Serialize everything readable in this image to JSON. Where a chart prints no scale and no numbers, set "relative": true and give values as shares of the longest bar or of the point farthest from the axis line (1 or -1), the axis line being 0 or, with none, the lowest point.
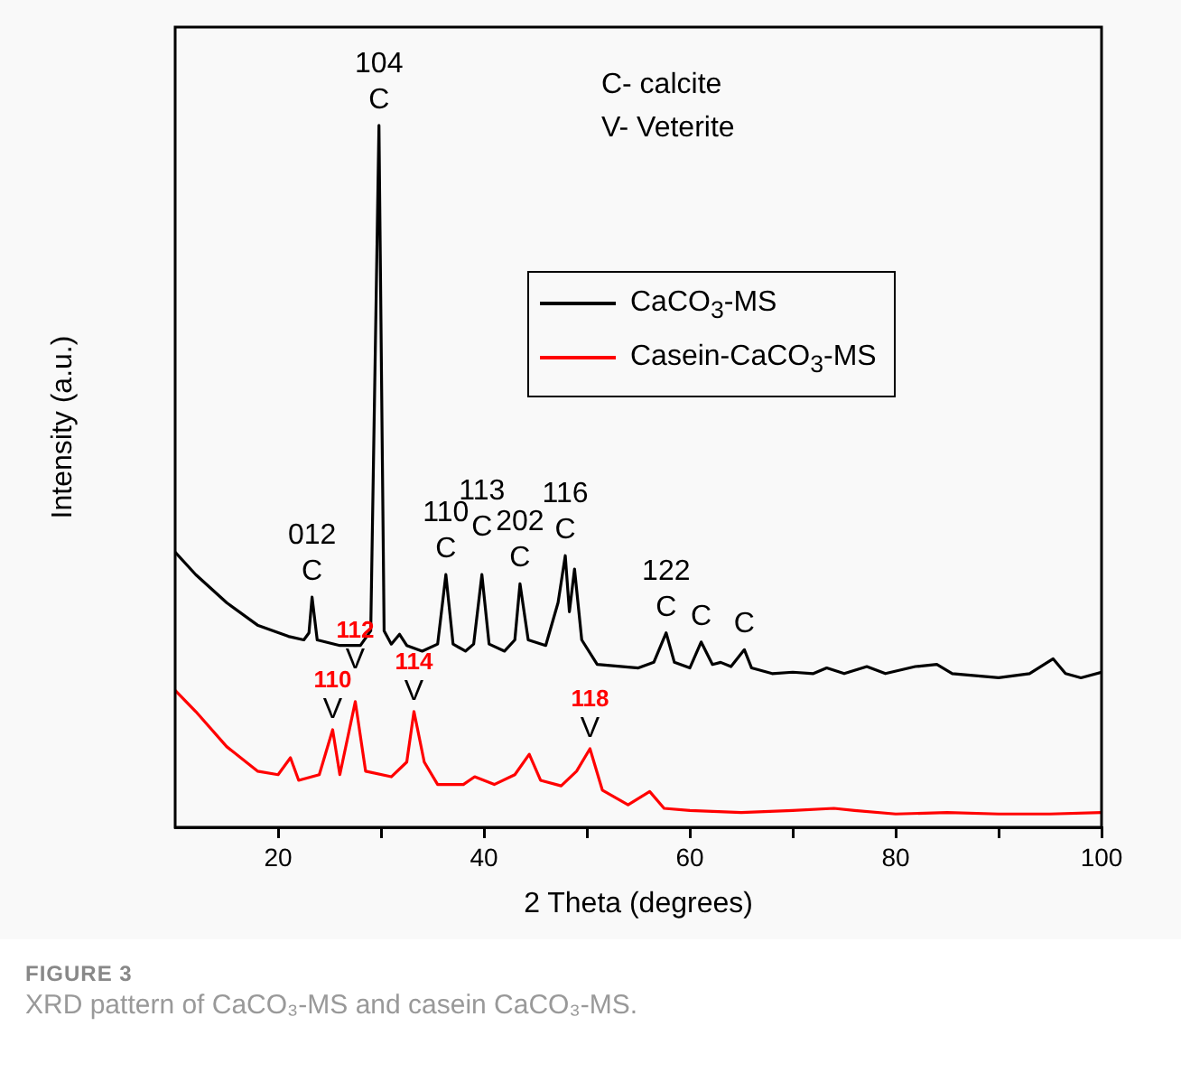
{
  "chart_data": {
    "type": "line",
    "title": "FIGURE 3",
    "subtitle": "XRD pattern of CaCO₃-MS and casein CaCO₃-MS.",
    "xlabel": "2 Theta (degrees)",
    "ylabel": "Intensity (a.u.)",
    "relative": true,
    "legend": "top right",
    "marker": "none",
    "line_style": "solid",
    "xlim": [
      10,
      100
    ],
    "xticks": [
      20,
      {
        "value": 30,
        "label": null
      },
      40,
      {
        "value": 50,
        "label": null
      },
      60,
      {
        "value": 70,
        "label": null
      },
      80,
      {
        "value": 90,
        "label": null
      },
      100
    ],
    "series": [
      {
        "name": "CaCO$_{3}$-MS",
        "color": "#000000",
        "x": [
          10,
          12,
          15,
          18,
          21,
          22.5,
          23,
          23.3,
          23.8,
          26,
          28,
          29,
          29.8,
          30.3,
          31,
          31.8,
          32.5,
          34,
          35.5,
          36.3,
          37,
          38.2,
          39,
          39.8,
          40.5,
          42,
          43,
          43.5,
          44.3,
          46,
          47.2,
          47.9,
          48.3,
          48.8,
          49.5,
          51,
          55,
          56.5,
          57.7,
          58.5,
          60,
          61.1,
          62.2,
          63,
          64,
          65.3,
          66,
          68,
          70,
          72,
          73.3,
          75,
          77.2,
          79,
          81.9,
          84,
          85.5,
          90,
          93,
          95.3,
          96.5,
          98,
          100
        ],
        "values": [
          0.392,
          0.36,
          0.32,
          0.288,
          0.272,
          0.267,
          0.277,
          0.328,
          0.267,
          0.259,
          0.259,
          0.28,
          1,
          0.28,
          0.261,
          0.275,
          0.259,
          0.251,
          0.261,
          0.36,
          0.261,
          0.251,
          0.261,
          0.36,
          0.261,
          0.251,
          0.267,
          0.347,
          0.267,
          0.259,
          0.32,
          0.387,
          0.307,
          0.368,
          0.267,
          0.232,
          0.227,
          0.235,
          0.277,
          0.235,
          0.227,
          0.264,
          0.232,
          0.235,
          0.229,
          0.253,
          0.227,
          0.219,
          0.221,
          0.219,
          0.227,
          0.219,
          0.229,
          0.219,
          0.229,
          0.232,
          0.219,
          0.213,
          0.219,
          0.24,
          0.219,
          0.213,
          0.221
        ]
      },
      {
        "name": "Casein-CaCO$_{3}$-MS",
        "color": "#ff0000",
        "x": [
          10,
          12,
          15,
          18,
          20,
          21.2,
          22,
          24,
          25.3,
          26,
          27.5,
          28.5,
          31,
          32.5,
          33.2,
          34.2,
          35.5,
          38,
          39.1,
          41,
          43,
          44.4,
          45.5,
          47.5,
          49,
          50.3,
          51.5,
          54,
          56.1,
          57.5,
          60,
          65,
          70,
          74,
          76,
          80,
          85,
          90,
          95,
          100
        ],
        "values": [
          0.195,
          0.165,
          0.115,
          0.08,
          0.075,
          0.099,
          0.067,
          0.075,
          0.139,
          0.075,
          0.179,
          0.08,
          0.072,
          0.093,
          0.165,
          0.093,
          0.061,
          0.061,
          0.072,
          0.061,
          0.075,
          0.104,
          0.067,
          0.059,
          0.08,
          0.112,
          0.053,
          0.032,
          0.051,
          0.027,
          0.024,
          0.021,
          0.024,
          0.027,
          0.024,
          0.019,
          0.021,
          0.019,
          0.019,
          0.021
        ]
      }
    ],
    "annotations": [
      "C- calcite",
      "V- Veterite",
      {
        "text": "104",
        "x": 29.8,
        "y": 1
      },
      {
        "text": "C",
        "x": 29.8,
        "y": 1
      },
      {
        "text": "012",
        "x": 23.3,
        "y": 0.328
      },
      {
        "text": "C",
        "x": 23.3,
        "y": 0.328
      },
      {
        "text": "110",
        "x": 36.3,
        "y": 0.36
      },
      {
        "text": "C",
        "x": 36.3,
        "y": 0.36
      },
      {
        "text": "113",
        "x": 39.8,
        "y": 0.36
      },
      {
        "text": "C",
        "x": 39.8,
        "y": 0.36
      },
      {
        "text": "202",
        "x": 43.5,
        "y": 0.347
      },
      {
        "text": "C",
        "x": 43.5,
        "y": 0.347
      },
      {
        "text": "116",
        "x": 47.9,
        "y": 0.387
      },
      {
        "text": "C",
        "x": 47.9,
        "y": 0.387
      },
      {
        "text": "122",
        "x": 57.7,
        "y": 0.277
      },
      {
        "text": "C",
        "x": 57.7,
        "y": 0.277
      },
      {
        "text": "C",
        "x": 61.1,
        "y": 0.264
      },
      {
        "text": "C",
        "x": 65.3,
        "y": 0.253
      },
      {
        "text": "110",
        "x": 25.3,
        "y": 0.139
      },
      {
        "text": "V",
        "x": 25.3,
        "y": 0.139
      },
      {
        "text": "112",
        "x": 27.5,
        "y": 0.179
      },
      {
        "text": "V",
        "x": 27.5,
        "y": 0.179
      },
      {
        "text": "114",
        "x": 33.2,
        "y": 0.165
      },
      {
        "text": "V",
        "x": 33.2,
        "y": 0.165
      },
      {
        "text": "118",
        "x": 50.3,
        "y": 0.112
      },
      {
        "text": "V",
        "x": 50.3,
        "y": 0.112
      }
    ]
  }
}
